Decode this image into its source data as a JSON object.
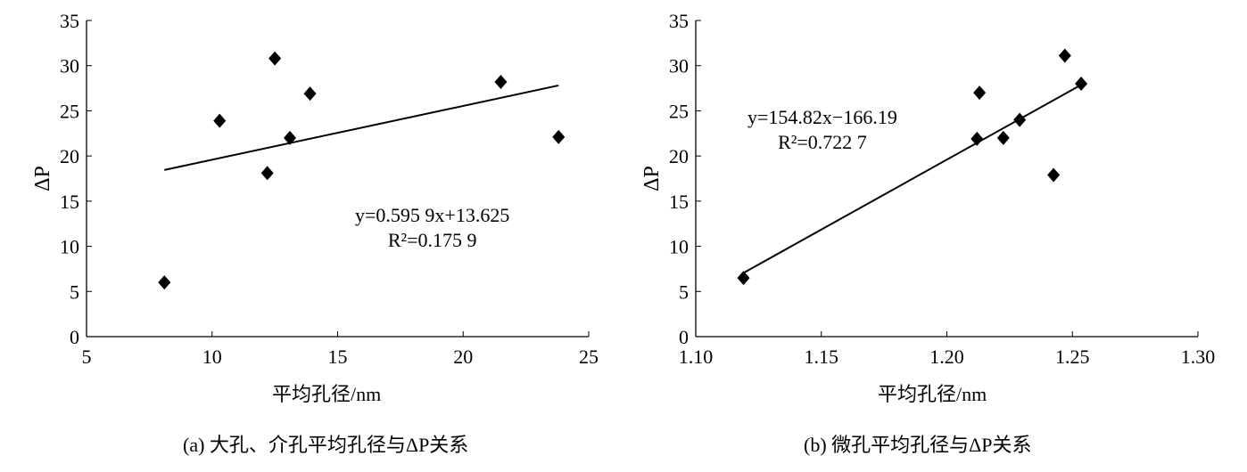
{
  "chart_data": [
    {
      "type": "scatter",
      "xlabel": "平均孔径/nm",
      "ylabel": "ΔP",
      "xlim": [
        5,
        25
      ],
      "ylim": [
        0,
        35
      ],
      "xticks": [
        5,
        10,
        15,
        20,
        25
      ],
      "yticks": [
        0,
        5,
        10,
        15,
        20,
        25,
        30,
        35
      ],
      "points": [
        [
          8.1,
          6.0
        ],
        [
          10.3,
          23.9
        ],
        [
          12.5,
          30.8
        ],
        [
          12.2,
          18.1
        ],
        [
          13.1,
          22.0
        ],
        [
          13.9,
          26.9
        ],
        [
          21.5,
          28.2
        ],
        [
          23.8,
          22.1
        ]
      ],
      "trendline": {
        "slope": 0.5959,
        "intercept": 13.625,
        "x_range": [
          8.1,
          23.8
        ]
      },
      "equation": "y=0.595 9x+13.625",
      "r2": "R²=0.175 9",
      "caption": "(a)  大孔、介孔平均孔径与ΔP关系",
      "grid": false,
      "marker": "diamond"
    },
    {
      "type": "scatter",
      "xlabel": "平均孔径/nm",
      "ylabel": "ΔP",
      "xlim": [
        1.1,
        1.3
      ],
      "ylim": [
        0,
        35
      ],
      "xticks": [
        "1.10",
        "1.15",
        "1.20",
        "1.25",
        "1.30"
      ],
      "yticks": [
        0,
        5,
        10,
        15,
        20,
        25,
        30,
        35
      ],
      "points": [
        [
          1.119,
          6.5
        ],
        [
          1.213,
          27.0
        ],
        [
          1.212,
          21.9
        ],
        [
          1.2225,
          22.0
        ],
        [
          1.229,
          24.0
        ],
        [
          1.2425,
          17.9
        ],
        [
          1.247,
          31.1
        ],
        [
          1.2535,
          28.0
        ]
      ],
      "trendline": {
        "slope": 154.82,
        "intercept": -166.19,
        "x_range": [
          1.119,
          1.253
        ]
      },
      "equation": "y=154.82x−166.19",
      "r2": "R²=0.722 7",
      "caption": "(b)  微孔平均孔径与ΔP关系",
      "grid": false,
      "marker": "diamond"
    }
  ]
}
